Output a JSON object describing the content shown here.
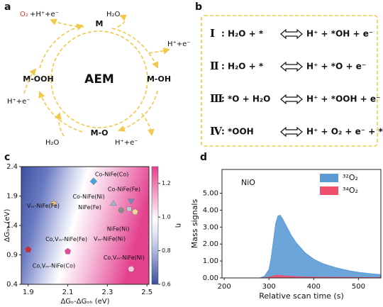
{
  "panel_a": {
    "label": "a",
    "center": "AEM",
    "states": [
      "M",
      "M-OH",
      "M-O",
      "M-OOH"
    ],
    "o2": "O₂",
    "o2_rest": "+H⁺+e⁻",
    "species": [
      "H₂O",
      "H⁺+e⁻",
      "H⁺+e⁻",
      "H₂O",
      "H⁺+e⁻"
    ]
  },
  "panel_b": {
    "label": "b",
    "equations": [
      {
        "numeral": "Ⅰ",
        "left": ": H₂O + *",
        "right": "H⁺ + *OH + e⁻"
      },
      {
        "numeral": "Ⅱ",
        "left": ": H₂O + *",
        "right": "H⁺ + *O + e⁻"
      },
      {
        "numeral": "Ⅲ",
        "left": ": *O + H₂O",
        "right": "H⁺ + *OOH + e⁻"
      },
      {
        "numeral": "Ⅳ",
        "left": ": *OOH",
        "right": "H⁺ + O₂ + e⁻ + *"
      }
    ]
  },
  "chart_data": [
    {
      "type": "scatter",
      "label": "c",
      "xlabel": "ΔGₒ-ΔGₒₕ (eV)",
      "ylabel": "ΔGₒₕ (eV)",
      "xlim": [
        1.865,
        2.51
      ],
      "ylim": [
        0.4,
        2.4
      ],
      "xticks": [
        1.9,
        2.1,
        2.3,
        2.5
      ],
      "yticks": [
        0.4,
        0.9,
        1.4,
        1.9,
        2.4
      ],
      "colorbar": {
        "label": "η",
        "lim": [
          0.6,
          1.3
        ],
        "ticks": [
          0.6,
          0.8,
          {
            "value": 1,
            "label": "1.0"
          },
          1.2
        ]
      },
      "series": [
        {
          "name": "Co-NiFe(Co)",
          "color": "#4aa3d8",
          "marker": "diamond",
          "x": 2.23,
          "y": 2.15
        },
        {
          "name": "Co-NiFe(Ni)",
          "color": "#9ab8d8",
          "marker": "triangle",
          "x": 2.33,
          "y": 1.77
        },
        {
          "name": "Co-NiFe(Fe)",
          "color": "#6b8fc0",
          "marker": "triangle-down",
          "x": 2.42,
          "y": 1.82
        },
        {
          "name": "Vₘ-NiFe(Fe)",
          "color": "#f5c76a",
          "marker": "star",
          "x": 2.03,
          "y": 1.78
        },
        {
          "name": "NiFe(Fe)",
          "color": "#8c8c8c",
          "marker": "circle",
          "x": 2.37,
          "y": 1.66
        },
        {
          "name": "NiFe(Ni)",
          "color": "#f2d6a0",
          "marker": "pentagon",
          "x": 2.44,
          "y": 1.63
        },
        {
          "name": "Vₘ-NiFe(Ni)",
          "color": "#c8c8c8",
          "marker": "square",
          "x": 2.41,
          "y": 1.68
        },
        {
          "name": "Co,Vₘ-NiFe(Fe)",
          "color": "#e8479a",
          "marker": "pentagon",
          "x": 2.1,
          "y": 0.96
        },
        {
          "name": "Co,Vₘ-NiFe(Co)",
          "color": "#d2283c",
          "marker": "pentagon",
          "x": 1.9,
          "y": 0.99
        },
        {
          "name": "Co,Vₘ-NiFe(Ni)",
          "color": "#f6c8d8",
          "marker": "hexagon",
          "x": 2.42,
          "y": 0.66
        }
      ]
    },
    {
      "type": "area",
      "label": "d",
      "annotation": "NiO",
      "xlabel": "Relative scan time (s)",
      "ylabel": "Mass signals",
      "xlim": [
        195,
        550
      ],
      "ylim": [
        0,
        6.4
      ],
      "xticks": [
        200,
        300,
        400,
        500
      ],
      "yticks": [
        {
          "value": 0,
          "label": "0.00"
        },
        {
          "value": 1,
          "label": "1.00"
        },
        {
          "value": 2,
          "label": "2.00"
        },
        {
          "value": 3,
          "label": "3.00"
        },
        {
          "value": 4,
          "label": "4.00"
        },
        {
          "value": 5,
          "label": "5.00"
        }
      ],
      "legend": "upper right",
      "x": [
        195,
        280,
        290,
        300,
        305,
        310,
        315,
        320,
        325,
        330,
        340,
        350,
        360,
        380,
        400,
        420,
        450,
        480,
        500,
        530,
        550
      ],
      "series": [
        {
          "name": "³²O₂",
          "color": "#5b9bd5",
          "values": [
            0,
            0,
            0.1,
            0.5,
            1.2,
            2.2,
            3.2,
            3.65,
            3.7,
            3.5,
            3.0,
            2.5,
            2.1,
            1.5,
            1.1,
            0.85,
            0.6,
            0.42,
            0.33,
            0.24,
            0.2
          ]
        },
        {
          "name": "³⁴O₂",
          "color": "#f0506e",
          "values": [
            0,
            0,
            0.01,
            0.04,
            0.08,
            0.12,
            0.15,
            0.16,
            0.15,
            0.14,
            0.11,
            0.09,
            0.08,
            0.06,
            0.05,
            0.04,
            0.03,
            0.03,
            0.02,
            0.02,
            0.02
          ]
        }
      ]
    }
  ]
}
